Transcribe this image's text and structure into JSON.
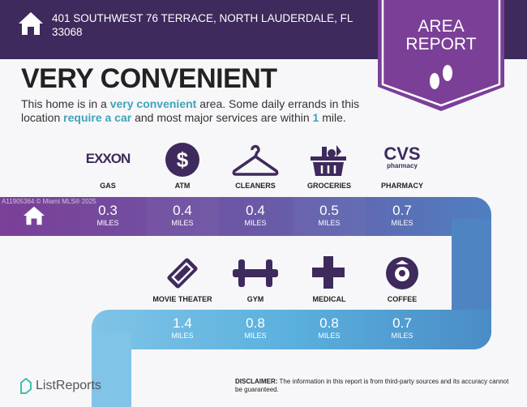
{
  "header": {
    "address": "401 SOUTHWEST 76 TERRACE, NORTH LAUDERDALE, FL 33068",
    "icon": "house-icon"
  },
  "badge": {
    "line1": "AREA",
    "line2": "REPORT",
    "icon": "footprints-icon"
  },
  "title": "VERY CONVENIENT",
  "description": {
    "p1": "This home is in a ",
    "h1": "very convenient",
    "p2": " area. Some daily errands in this location ",
    "h2": "require a car",
    "p3": " and most major services are within ",
    "h3": "1",
    "p4": " mile."
  },
  "watermark": "A11905364 © Miami MLS® 2025",
  "row1": [
    {
      "label": "GAS",
      "value": "0.3",
      "unit": "MILES",
      "icon": "exxon-logo"
    },
    {
      "label": "ATM",
      "value": "0.4",
      "unit": "MILES",
      "icon": "dollar-icon"
    },
    {
      "label": "CLEANERS",
      "value": "0.4",
      "unit": "MILES",
      "icon": "hanger-icon"
    },
    {
      "label": "GROCERIES",
      "value": "0.5",
      "unit": "MILES",
      "icon": "basket-icon"
    },
    {
      "label": "PHARMACY",
      "value": "0.7",
      "unit": "MILES",
      "icon": "cvs-logo"
    }
  ],
  "row2": [
    {
      "label": "MOVIE THEATER",
      "value": "1.4",
      "unit": "MILES",
      "icon": "ticket-icon"
    },
    {
      "label": "GYM",
      "value": "0.8",
      "unit": "MILES",
      "icon": "dumbbell-icon"
    },
    {
      "label": "MEDICAL",
      "value": "0.8",
      "unit": "MILES",
      "icon": "medical-cross-icon"
    },
    {
      "label": "COFFEE",
      "value": "0.7",
      "unit": "MILES",
      "icon": "starbucks-logo"
    }
  ],
  "logos": {
    "exxon": "EXXON",
    "cvs": "CVS",
    "cvs_sub": "pharmacy"
  },
  "footer": {
    "brand": "ListReports",
    "disclaimer_label": "DISCLAIMER:",
    "disclaimer": " The information in this report is from third-party sources and its accuracy cannot be guaranteed."
  },
  "colors": {
    "header": "#3e2a5c",
    "badge": "#7b3f98",
    "icon": "#3e2a5c",
    "accent": "#3fa3b8"
  }
}
